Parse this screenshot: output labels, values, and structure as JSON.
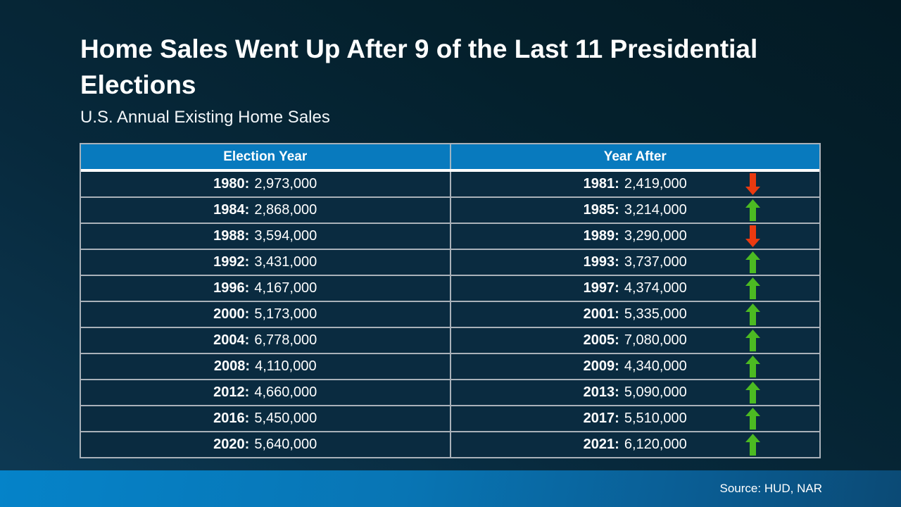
{
  "slide": {
    "title": "Home Sales Went Up After 9 of the Last 11 Presidential Elections",
    "subtitle": "U.S. Annual Existing Home Sales",
    "source": "Source: HUD, NAR"
  },
  "table": {
    "headers": [
      "Election Year",
      "Year After"
    ],
    "rows": [
      {
        "election": {
          "year": "1980:",
          "value": "2,973,000"
        },
        "after": {
          "year": "1981:",
          "value": "2,419,000"
        },
        "trend": "down"
      },
      {
        "election": {
          "year": "1984:",
          "value": "2,868,000"
        },
        "after": {
          "year": "1985:",
          "value": "3,214,000"
        },
        "trend": "up"
      },
      {
        "election": {
          "year": "1988:",
          "value": "3,594,000"
        },
        "after": {
          "year": "1989:",
          "value": "3,290,000"
        },
        "trend": "down"
      },
      {
        "election": {
          "year": "1992:",
          "value": "3,431,000"
        },
        "after": {
          "year": "1993:",
          "value": "3,737,000"
        },
        "trend": "up"
      },
      {
        "election": {
          "year": "1996:",
          "value": "4,167,000"
        },
        "after": {
          "year": "1997:",
          "value": "4,374,000"
        },
        "trend": "up"
      },
      {
        "election": {
          "year": "2000:",
          "value": "5,173,000"
        },
        "after": {
          "year": "2001:",
          "value": "5,335,000"
        },
        "trend": "up"
      },
      {
        "election": {
          "year": "2004:",
          "value": "6,778,000"
        },
        "after": {
          "year": "2005:",
          "value": "7,080,000"
        },
        "trend": "up"
      },
      {
        "election": {
          "year": "2008:",
          "value": "4,110,000"
        },
        "after": {
          "year": "2009:",
          "value": "4,340,000"
        },
        "trend": "up"
      },
      {
        "election": {
          "year": "2012:",
          "value": "4,660,000"
        },
        "after": {
          "year": "2013:",
          "value": "5,090,000"
        },
        "trend": "up"
      },
      {
        "election": {
          "year": "2016:",
          "value": "5,450,000"
        },
        "after": {
          "year": "2017:",
          "value": "5,510,000"
        },
        "trend": "up"
      },
      {
        "election": {
          "year": "2020:",
          "value": "5,640,000"
        },
        "after": {
          "year": "2021:",
          "value": "6,120,000"
        },
        "trend": "up"
      }
    ]
  },
  "chart_data": {
    "type": "table",
    "title": "Home Sales Went Up After 9 of the Last 11 Presidential Elections",
    "subtitle": "U.S. Annual Existing Home Sales",
    "columns": [
      "Election Year",
      "Year After"
    ],
    "rows": [
      {
        "election_year": 1980,
        "election_year_sales": 2973000,
        "year_after": 1981,
        "year_after_sales": 2419000,
        "trend": "down"
      },
      {
        "election_year": 1984,
        "election_year_sales": 2868000,
        "year_after": 1985,
        "year_after_sales": 3214000,
        "trend": "up"
      },
      {
        "election_year": 1988,
        "election_year_sales": 3594000,
        "year_after": 1989,
        "year_after_sales": 3290000,
        "trend": "down"
      },
      {
        "election_year": 1992,
        "election_year_sales": 3431000,
        "year_after": 1993,
        "year_after_sales": 3737000,
        "trend": "up"
      },
      {
        "election_year": 1996,
        "election_year_sales": 4167000,
        "year_after": 1997,
        "year_after_sales": 4374000,
        "trend": "up"
      },
      {
        "election_year": 2000,
        "election_year_sales": 5173000,
        "year_after": 2001,
        "year_after_sales": 5335000,
        "trend": "up"
      },
      {
        "election_year": 2004,
        "election_year_sales": 6778000,
        "year_after": 2005,
        "year_after_sales": 7080000,
        "trend": "up"
      },
      {
        "election_year": 2008,
        "election_year_sales": 4110000,
        "year_after": 2009,
        "year_after_sales": 4340000,
        "trend": "up"
      },
      {
        "election_year": 2012,
        "election_year_sales": 4660000,
        "year_after": 2013,
        "year_after_sales": 5090000,
        "trend": "up"
      },
      {
        "election_year": 2016,
        "election_year_sales": 5450000,
        "year_after": 2017,
        "year_after_sales": 5510000,
        "trend": "up"
      },
      {
        "election_year": 2020,
        "election_year_sales": 5640000,
        "year_after": 2021,
        "year_after_sales": 6120000,
        "trend": "up"
      }
    ],
    "source": "Source: HUD, NAR"
  },
  "colors": {
    "header_bg": "#087abe",
    "row_bg": "#0a2b40",
    "up_arrow": "#4cba22",
    "down_arrow": "#ea3a10",
    "footer_left": "#0583c9",
    "footer_right": "#0b4a75"
  }
}
